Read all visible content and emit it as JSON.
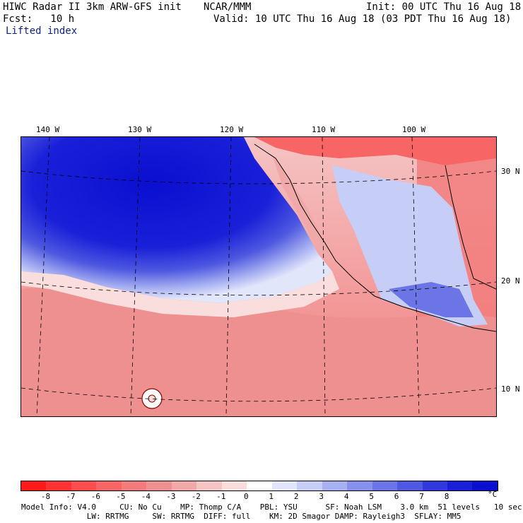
{
  "header": {
    "title": "HIWC Radar II 3km ARW-GFS init",
    "org": "NCAR/MMM",
    "init": "Init: 00 UTC Thu 16 Aug 18",
    "fcst": "Fcst:   10 h",
    "valid": "Valid: 10 UTC Thu 16 Aug 18 (03 PDT Thu 16 Aug 18)",
    "field": "Lifted index"
  },
  "map": {
    "lon_labels": [
      "140 W",
      "130 W",
      "120 W",
      "110 W",
      "100 W"
    ],
    "lat_labels": [
      "30 N",
      "20 N",
      "10 N"
    ]
  },
  "colorbar": {
    "colors": [
      "#ff1a1a",
      "#ff3333",
      "#ff4d4d",
      "#f76565",
      "#f27b7b",
      "#ee9090",
      "#f0a8a8",
      "#f5c4c4",
      "#fadede",
      "#ffffff",
      "#e2e6fb",
      "#c6cdf7",
      "#a7b0f1",
      "#8791eb",
      "#6b75e6",
      "#4e58e0",
      "#3139dc",
      "#1a20d8",
      "#0a0fd0"
    ],
    "ticks": [
      "-8",
      "-7",
      "-6",
      "-5",
      "-4",
      "-3",
      "-2",
      "-1",
      "0",
      "1",
      "2",
      "3",
      "4",
      "5",
      "6",
      "7",
      "8"
    ],
    "unit": "°C"
  },
  "footer": {
    "line1": "Model Info: V4.0     CU: No Cu    MP: Thomp C/A    PBL: YSU      SF: Noah LSM    3.0 km  51 levels   10 sec",
    "line2": "              LW: RRTMG     SW: RRTMG  DIFF: full    KM: 2D Smagor DAMP: Rayleigh3  SFLAY: MM5"
  }
}
